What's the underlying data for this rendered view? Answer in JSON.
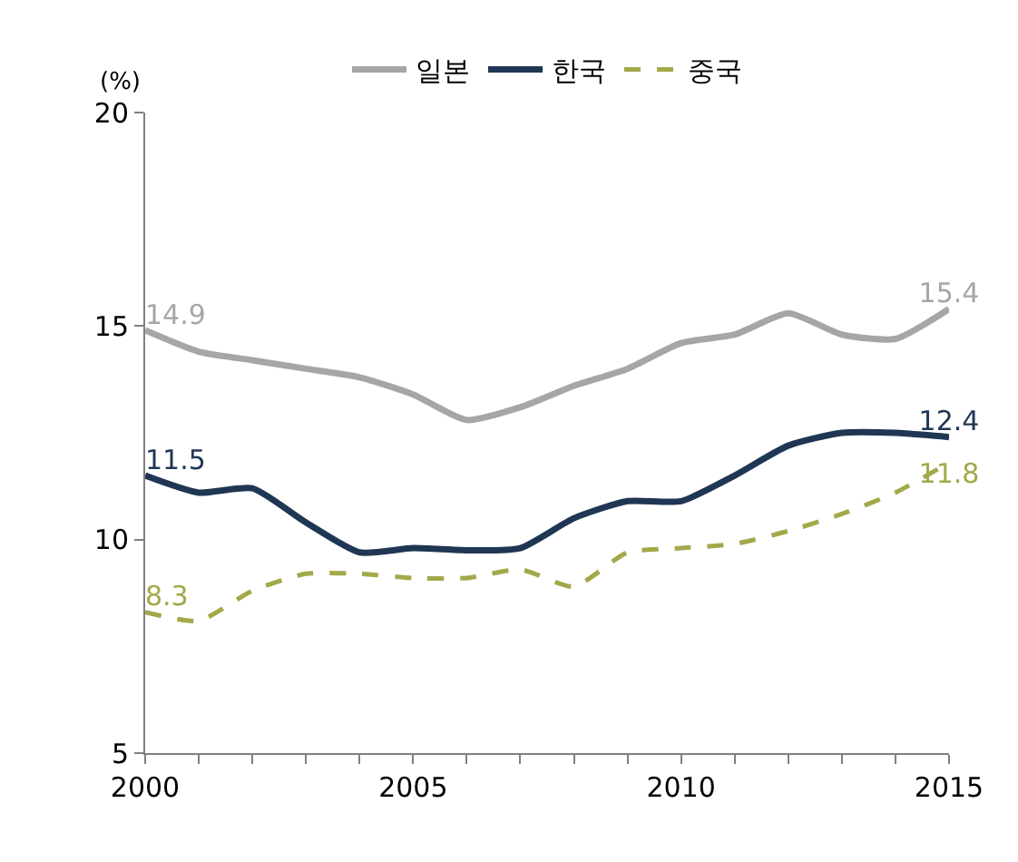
{
  "chart_data": {
    "type": "line",
    "ylabel": "(%)",
    "x": [
      2000,
      2001,
      2002,
      2003,
      2004,
      2005,
      2006,
      2007,
      2008,
      2009,
      2010,
      2011,
      2012,
      2013,
      2014,
      2015
    ],
    "series": [
      {
        "name": "일본",
        "color": "#a6a6a6",
        "line_style": "solid",
        "values": [
          14.9,
          14.4,
          14.2,
          14.0,
          13.8,
          13.4,
          12.8,
          13.1,
          13.6,
          14.0,
          14.6,
          14.8,
          15.3,
          14.8,
          14.7,
          15.4
        ],
        "value_labels": [
          "14.9",
          null,
          null,
          null,
          null,
          null,
          null,
          null,
          null,
          null,
          null,
          null,
          null,
          null,
          null,
          "15.4"
        ]
      },
      {
        "name": "한국",
        "color": "#1f3654",
        "line_style": "solid",
        "values": [
          11.5,
          11.1,
          11.2,
          10.4,
          9.7,
          9.8,
          9.75,
          9.8,
          10.5,
          10.9,
          10.9,
          11.5,
          12.2,
          12.5,
          12.5,
          12.4
        ],
        "value_labels": [
          "11.5",
          null,
          null,
          null,
          null,
          null,
          null,
          null,
          null,
          null,
          null,
          null,
          null,
          null,
          null,
          "12.4"
        ]
      },
      {
        "name": "중국",
        "color": "#a3a84a",
        "line_style": "dashed",
        "values": [
          8.3,
          8.1,
          8.8,
          9.2,
          9.2,
          9.1,
          9.1,
          9.3,
          8.9,
          9.7,
          9.8,
          9.9,
          10.2,
          10.6,
          11.1,
          11.8
        ],
        "value_labels": [
          "8.3",
          null,
          null,
          null,
          null,
          null,
          null,
          null,
          null,
          null,
          null,
          null,
          null,
          null,
          null,
          "11.8"
        ]
      }
    ],
    "xlim": [
      2000,
      2015
    ],
    "xticks": [
      2000,
      {
        "value": 2001,
        "label": null
      },
      {
        "value": 2002,
        "label": null
      },
      {
        "value": 2003,
        "label": null
      },
      {
        "value": 2004,
        "label": null
      },
      2005,
      {
        "value": 2006,
        "label": null
      },
      {
        "value": 2007,
        "label": null
      },
      {
        "value": 2008,
        "label": null
      },
      {
        "value": 2009,
        "label": null
      },
      2010,
      {
        "value": 2011,
        "label": null
      },
      {
        "value": 2012,
        "label": null
      },
      {
        "value": 2013,
        "label": null
      },
      {
        "value": 2014,
        "label": null
      },
      2015
    ],
    "ylim": [
      5,
      20
    ],
    "yticks": [
      5,
      10,
      15,
      20
    ],
    "legend": "top",
    "marker": "none"
  }
}
